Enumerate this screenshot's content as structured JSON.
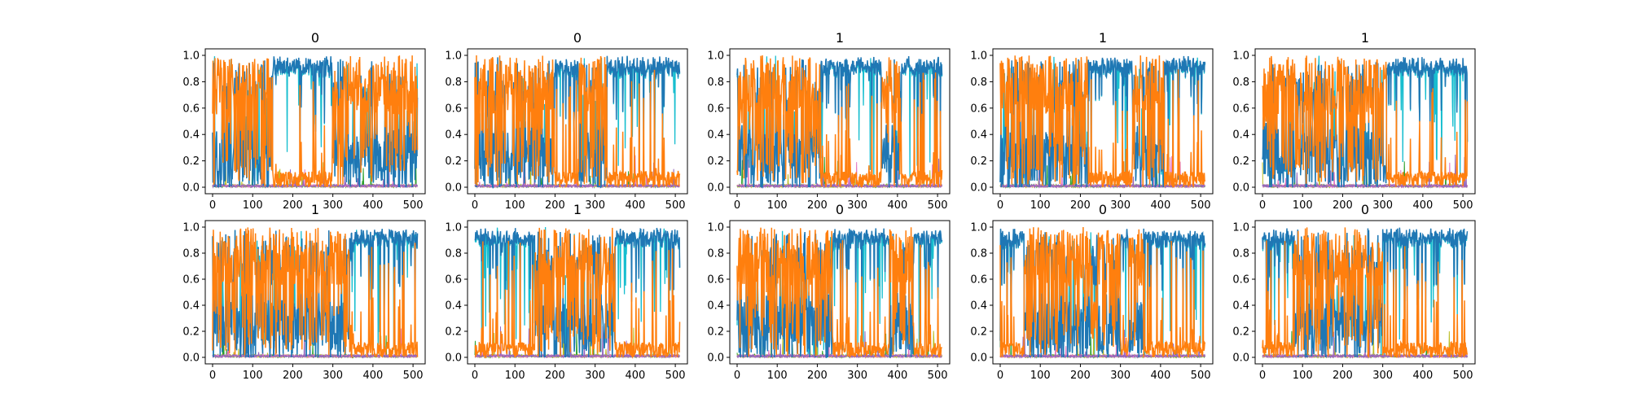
{
  "chart_data": {
    "type": "line",
    "layout": "2x5 grid of subplots",
    "xlim": [
      0,
      512
    ],
    "ylim": [
      0.0,
      1.0
    ],
    "x_ticks": [
      "0",
      "100",
      "200",
      "300",
      "400",
      "500"
    ],
    "y_ticks": [
      "0.0",
      "0.2",
      "0.4",
      "0.6",
      "0.8",
      "1.0"
    ],
    "grid": false,
    "colors": {
      "blue": "#1f77b4",
      "orange": "#ff7f0e",
      "cyan": "#17becf",
      "green": "#2ca02c",
      "olive": "#bcbd22",
      "pink": "#e377c2",
      "purple": "#9467bd"
    },
    "subplots": [
      {
        "title": "0",
        "orange_high_ranges": [
          [
            0,
            150
          ],
          [
            300,
            512
          ]
        ],
        "blue_high_ranges": [
          [
            150,
            300
          ]
        ]
      },
      {
        "title": "0",
        "orange_high_ranges": [
          [
            0,
            200
          ],
          [
            260,
            330
          ]
        ],
        "blue_high_ranges": [
          [
            200,
            260
          ],
          [
            330,
            512
          ]
        ]
      },
      {
        "title": "1",
        "orange_high_ranges": [
          [
            0,
            210
          ],
          [
            360,
            410
          ]
        ],
        "blue_high_ranges": [
          [
            210,
            360
          ],
          [
            410,
            512
          ]
        ]
      },
      {
        "title": "1",
        "orange_high_ranges": [
          [
            0,
            220
          ],
          [
            330,
            410
          ]
        ],
        "blue_high_ranges": [
          [
            220,
            330
          ],
          [
            410,
            512
          ]
        ]
      },
      {
        "title": "1",
        "orange_high_ranges": [
          [
            0,
            310
          ]
        ],
        "blue_high_ranges": [
          [
            310,
            512
          ]
        ]
      },
      {
        "title": "1",
        "orange_high_ranges": [
          [
            0,
            340
          ]
        ],
        "blue_high_ranges": [
          [
            340,
            512
          ]
        ]
      },
      {
        "title": "1",
        "orange_high_ranges": [
          [
            150,
            350
          ]
        ],
        "blue_high_ranges": [
          [
            0,
            150
          ],
          [
            350,
            512
          ]
        ]
      },
      {
        "title": "0",
        "orange_high_ranges": [
          [
            0,
            240
          ],
          [
            380,
            440
          ]
        ],
        "blue_high_ranges": [
          [
            240,
            380
          ],
          [
            440,
            512
          ]
        ]
      },
      {
        "title": "0",
        "orange_high_ranges": [
          [
            60,
            300
          ],
          [
            320,
            360
          ]
        ],
        "blue_high_ranges": [
          [
            0,
            60
          ],
          [
            360,
            512
          ]
        ]
      },
      {
        "title": "0",
        "orange_high_ranges": [
          [
            80,
            300
          ]
        ],
        "blue_high_ranges": [
          [
            0,
            80
          ],
          [
            300,
            512
          ]
        ]
      }
    ]
  }
}
